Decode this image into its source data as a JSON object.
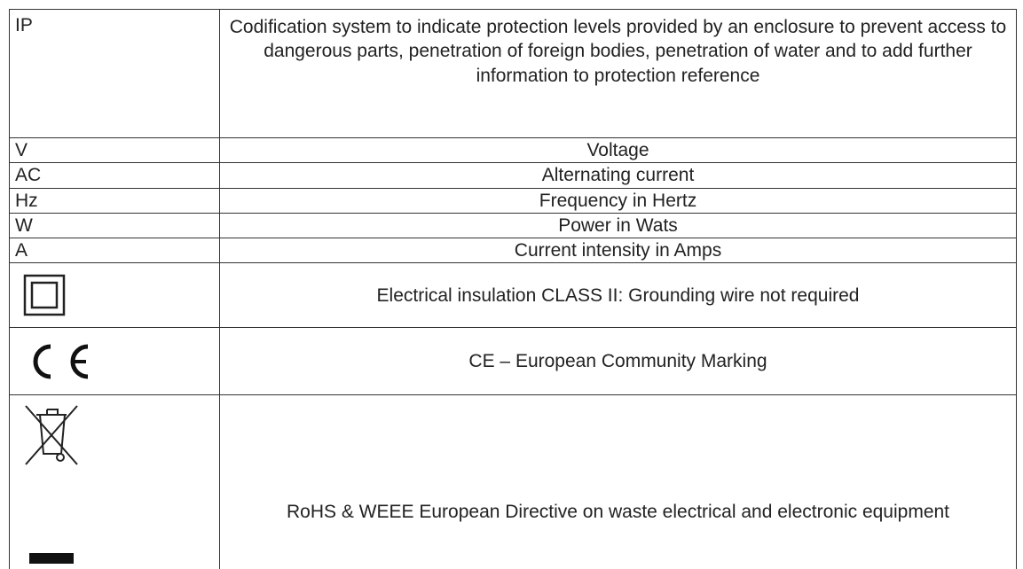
{
  "table": {
    "rows": [
      {
        "symbol": "IP",
        "description": "Codification system to indicate protection levels provided by an enclosure to prevent access to dangerous parts, penetration of foreign bodies, penetration of water and to add further information to protection reference"
      },
      {
        "symbol": "V",
        "description": "Voltage"
      },
      {
        "symbol": "AC",
        "description": "Alternating current"
      },
      {
        "symbol": "Hz",
        "description": "Frequency in Hertz"
      },
      {
        "symbol": "W",
        "description": "Power in Wats"
      },
      {
        "symbol": "A",
        "description": "Current intensity in Amps"
      },
      {
        "description": "Electrical insulation CLASS II: Grounding wire not required"
      },
      {
        "description": "CE – European Community Marking"
      },
      {
        "description": "RoHS & WEEE European Directive on waste electrical and electronic equipment"
      }
    ]
  }
}
